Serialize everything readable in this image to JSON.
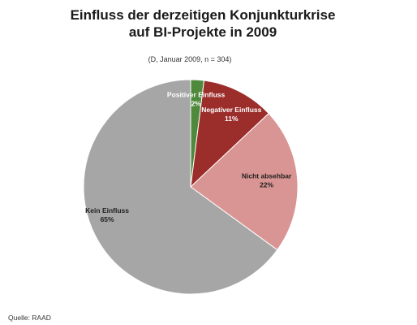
{
  "title_lines": [
    "Einfluss der derzeitigen Konjunkturkrise",
    "auf BI-Projekte in 2009"
  ],
  "subtitle": "(D, Januar 2009, n = 304)",
  "source": "Quelle: RAAD",
  "chart_data": {
    "type": "pie",
    "title": "Einfluss der derzeitigen Konjunkturkrise auf BI-Projekte in 2009",
    "subtitle": "(D, Januar 2009, n = 304)",
    "start": "12 o'clock",
    "direction": "clockwise",
    "legend": "none",
    "slices": [
      {
        "label": "Positiver Einfluss",
        "value": 2,
        "value_label": "2%",
        "color": "#4f8a3c",
        "label_color": "#ffffff"
      },
      {
        "label": "Negativer Einfluss",
        "value": 11,
        "value_label": "11%",
        "color": "#9b2d2b",
        "label_color": "#ffffff"
      },
      {
        "label": "Nicht absehbar",
        "value": 22,
        "value_label": "22%",
        "color": "#d99593",
        "label_color": "#1f1f1f"
      },
      {
        "label": "Kein Einfluss",
        "value": 65,
        "value_label": "65%",
        "color": "#a6a6a6",
        "label_color": "#1f1f1f"
      }
    ]
  }
}
